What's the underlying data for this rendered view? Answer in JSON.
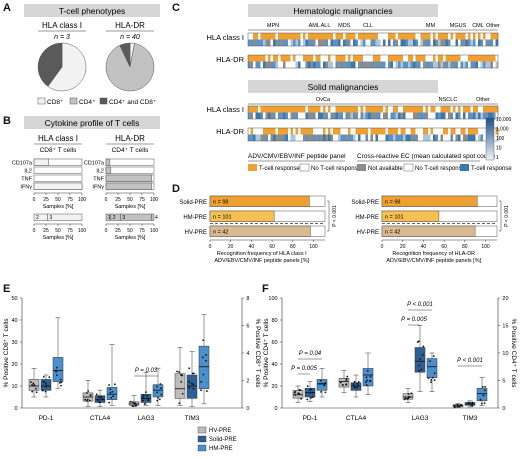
{
  "panel_letters": [
    "A",
    "B",
    "C",
    "D",
    "E",
    "F"
  ],
  "panelA": {
    "title": "T-cell phenotypes",
    "pies": [
      {
        "title": "HLA class I",
        "n_label": "n = 3",
        "slices": [
          {
            "key": "cd8",
            "value": 0.6
          },
          {
            "key": "cd4",
            "value": 0.0
          },
          {
            "key": "both",
            "value": 0.4
          }
        ]
      },
      {
        "title": "HLA-DR",
        "n_label": "n = 40",
        "slices": [
          {
            "key": "cd8",
            "value": 0.03
          },
          {
            "key": "cd4",
            "value": 0.9
          },
          {
            "key": "both",
            "value": 0.07
          }
        ]
      }
    ],
    "legend": [
      {
        "label": "CD8⁺",
        "color": "#f2f2f2"
      },
      {
        "label": "CD4⁺",
        "color": "#c2c2c2"
      },
      {
        "label": "CD4⁺ and CD8⁺",
        "color": "#5a5a5a"
      }
    ]
  },
  "panelB": {
    "title": "Cytokine profile of T cells",
    "groups": [
      {
        "title": "HLA class I",
        "subtitle": "CD8⁺ T cells",
        "fill": "#f2f2f2",
        "rows": [
          {
            "label": "CD107a",
            "value": 30
          },
          {
            "label": "IL2",
            "value": 0
          },
          {
            "label": "TNF",
            "value": 0
          },
          {
            "label": "IFNγ",
            "value": 100
          }
        ],
        "stack": [
          {
            "label": "2",
            "value": 28
          },
          {
            "label": "3",
            "value": 72
          }
        ]
      },
      {
        "title": "HLA-DR",
        "subtitle": "CD4⁺ T cells",
        "fill": "#c2c2c2",
        "rows": [
          {
            "label": "CD107a",
            "value": 8
          },
          {
            "label": "IL2",
            "value": 10
          },
          {
            "label": "TNF",
            "value": 95
          },
          {
            "label": "IFNγ",
            "value": 95
          }
        ],
        "stack": [
          {
            "label": "1",
            "value": 10
          },
          {
            "label": "2",
            "value": 20
          },
          {
            "label": "3",
            "value": 65
          },
          {
            "label": "4",
            "value": 5
          }
        ]
      }
    ],
    "xlabel": "Samples [%]",
    "ticks": [
      "0",
      "25",
      "50",
      "75",
      "100"
    ]
  },
  "panelC": {
    "hemato_title": "Hematologic malignancies",
    "solid_title": "Solid malignancies",
    "hemato_groups": [
      {
        "label": "MPN",
        "pos": 0.1
      },
      {
        "label": "AML",
        "pos": 0.265
      },
      {
        "label": "ALL",
        "pos": 0.31
      },
      {
        "label": "MDS",
        "pos": 0.385
      },
      {
        "label": "CLL",
        "pos": 0.48
      },
      {
        "label": "MM",
        "pos": 0.73
      },
      {
        "label": "MGUS",
        "pos": 0.84
      },
      {
        "label": "CML",
        "pos": 0.92
      },
      {
        "label": "Other",
        "pos": 0.98
      }
    ],
    "solid_groups": [
      {
        "label": "OvCa",
        "pos": 0.3
      },
      {
        "label": "NSCLC",
        "pos": 0.8
      },
      {
        "label": "Other",
        "pos": 0.94
      }
    ],
    "row_labels": [
      "HLA class I",
      "HLA-DR"
    ],
    "legend_left_title": "ADV/CMV/EBV/INF peptide panel",
    "legend_right_title": "Cross-reactive EC (mean calculated spot count)",
    "legend_items": [
      "T-cell response",
      "No T-cell response",
      "Not available",
      "No T-cell response",
      "T-cell response"
    ],
    "scale_labels": [
      "10,000",
      "1,000",
      "100",
      "10",
      "1"
    ],
    "colors": {
      "orange": "#f0a030",
      "blue": "#3a78b0",
      "gray": "#8c8c8c",
      "white": "#ffffff"
    }
  },
  "panelD": {
    "xlabel_left": "Recognition frequency of HLA class I ADV/EBV/CMV/INF peptide panels [%]",
    "xlabel_right": "Recognition frequency of HLA-DR ADV/EBV/CMV/INF peptide panels [%]",
    "ticks": [
      "0",
      "20",
      "40",
      "60",
      "80",
      "100"
    ],
    "p_label": "P < 0.001",
    "chart_data": [
      {
        "type": "bar",
        "categories": [
          "Solid-PRE",
          "HM-PRE",
          "HV-PRE"
        ],
        "n_labels": [
          "n = 98",
          "n = 101",
          "n = 42"
        ],
        "values": [
          96,
          62,
          97
        ],
        "colors": [
          "#f0a030",
          "#f5c050",
          "#d9b98f"
        ],
        "xlim": [
          0,
          100
        ]
      },
      {
        "type": "bar",
        "categories": [
          "Solid-PRE",
          "HM-PRE",
          "HV-PRE"
        ],
        "n_labels": [
          "n = 98",
          "n = 101",
          "n = 42"
        ],
        "values": [
          92,
          55,
          90
        ],
        "colors": [
          "#f0a030",
          "#f5c050",
          "#d9b98f"
        ],
        "xlim": [
          0,
          100
        ]
      }
    ]
  },
  "panelE": {
    "ylabel_left": "% Positive CD8⁺ T cells",
    "ylabel_right": "% Positive CD8⁺ T cells",
    "left_ticks": [
      "0",
      "10",
      "20",
      "30",
      "40",
      "50"
    ],
    "right_ticks": [
      "0",
      "2",
      "4",
      "6",
      "8"
    ],
    "categories": [
      "PD-1",
      "CTLA4",
      "LAG3",
      "TIM3"
    ],
    "p_label": "P = 0.03",
    "legend": [
      {
        "label": "HV-PRE",
        "color": "#bdbdbd"
      },
      {
        "label": "Solid-PRE",
        "color": "#2c5f93"
      },
      {
        "label": "HM-PRE",
        "color": "#4a90cc"
      }
    ]
  },
  "panelF": {
    "ylabel_left": "% Positive CD4⁺ T cells",
    "ylabel_right": "% Positive CD4⁺ T cells",
    "left_ticks": [
      "0",
      "20",
      "40",
      "60",
      "80",
      "100"
    ],
    "right_ticks": [
      "0",
      "5",
      "10",
      "15",
      "20"
    ],
    "categories": [
      "PD-1",
      "CTLA4",
      "LAG3",
      "TIM3"
    ],
    "p_labels": [
      "P = 0.04",
      "P = 0.005",
      "P < 0.001",
      "P = 0.005",
      "P < 0.001"
    ]
  },
  "chart_data": [
    {
      "type": "box",
      "panel": "E-left",
      "categories": [
        "PD-1"
      ],
      "ylim": [
        0,
        50
      ],
      "series": [
        {
          "name": "HV-PRE",
          "boxes": [
            {
              "min": 5,
              "q1": 8,
              "median": 10,
              "q3": 13,
              "max": 18
            }
          ]
        },
        {
          "name": "Solid-PRE",
          "boxes": [
            {
              "min": 5,
              "q1": 8,
              "median": 10,
              "q3": 13,
              "max": 15
            }
          ]
        },
        {
          "name": "HM-PRE",
          "boxes": [
            {
              "min": 9,
              "q1": 12,
              "median": 17,
              "q3": 23,
              "max": 41
            }
          ]
        }
      ]
    },
    {
      "type": "box",
      "panel": "E-right",
      "categories": [
        "CTLA4",
        "LAG3",
        "TIM3"
      ],
      "ylim": [
        0,
        8
      ],
      "series": [
        {
          "name": "HV-PRE",
          "boxes": [
            {
              "min": 0.1,
              "q1": 0.5,
              "median": 0.8,
              "q3": 1.1,
              "max": 2.0
            },
            {
              "min": 0.1,
              "q1": 0.2,
              "median": 0.3,
              "q3": 0.45,
              "max": 0.9
            },
            {
              "min": 0.2,
              "q1": 0.7,
              "median": 1.4,
              "q3": 2.5,
              "max": 4.4
            }
          ]
        },
        {
          "name": "Solid-PRE",
          "boxes": [
            {
              "min": 0.1,
              "q1": 0.4,
              "median": 0.6,
              "q3": 0.9,
              "max": 1.3
            },
            {
              "min": 0.2,
              "q1": 0.4,
              "median": 0.7,
              "q3": 1.0,
              "max": 2.6
            },
            {
              "min": 0.1,
              "q1": 0.7,
              "median": 1.6,
              "q3": 2.4,
              "max": 4.1
            }
          ]
        },
        {
          "name": "HM-PRE",
          "boxes": [
            {
              "min": 0.2,
              "q1": 0.6,
              "median": 1.0,
              "q3": 1.5,
              "max": 4.6
            },
            {
              "min": 0.2,
              "q1": 0.8,
              "median": 1.3,
              "q3": 1.7,
              "max": 2.9
            },
            {
              "min": 0.3,
              "q1": 1.4,
              "median": 3.0,
              "q3": 4.5,
              "max": 6.8
            }
          ]
        }
      ]
    },
    {
      "type": "box",
      "panel": "F-left",
      "categories": [
        "PD-1",
        "CTLA4"
      ],
      "ylim": [
        0,
        100
      ],
      "series": [
        {
          "name": "HV-PRE",
          "boxes": [
            {
              "min": 5,
              "q1": 9,
              "median": 12,
              "q3": 16,
              "max": 20
            },
            {
              "min": 14,
              "q1": 19,
              "median": 24,
              "q3": 27,
              "max": 34
            }
          ]
        },
        {
          "name": "Solid-PRE",
          "boxes": [
            {
              "min": 6,
              "q1": 10,
              "median": 14,
              "q3": 18,
              "max": 24
            },
            {
              "min": 10,
              "q1": 16,
              "median": 20,
              "q3": 23,
              "max": 30
            }
          ]
        },
        {
          "name": "HM-PRE",
          "boxes": [
            {
              "min": 10,
              "q1": 16,
              "median": 22,
              "q3": 26,
              "max": 36
            },
            {
              "min": 12,
              "q1": 20,
              "median": 30,
              "q3": 36,
              "max": 50
            }
          ]
        }
      ]
    },
    {
      "type": "box",
      "panel": "F-right",
      "categories": [
        "LAG3",
        "TIM3"
      ],
      "ylim": [
        0,
        20
      ],
      "series": [
        {
          "name": "HV-PRE",
          "boxes": [
            {
              "min": 1.0,
              "q1": 1.6,
              "median": 2.0,
              "q3": 2.6,
              "max": 3.5
            },
            {
              "min": 0.1,
              "q1": 0.2,
              "median": 0.4,
              "q3": 0.6,
              "max": 0.8
            }
          ]
        },
        {
          "name": "Solid-PRE",
          "boxes": [
            {
              "min": 3,
              "q1": 6.5,
              "median": 8.5,
              "q3": 11,
              "max": 15
            },
            {
              "min": 0.2,
              "q1": 0.5,
              "median": 0.7,
              "q3": 1.0,
              "max": 1.3
            }
          ]
        },
        {
          "name": "HM-PRE",
          "boxes": [
            {
              "min": 3,
              "q1": 5.5,
              "median": 7.5,
              "q3": 9,
              "max": 10
            },
            {
              "min": 0.4,
              "q1": 1.3,
              "median": 2.6,
              "q3": 3.6,
              "max": 5.6
            }
          ]
        }
      ]
    }
  ]
}
